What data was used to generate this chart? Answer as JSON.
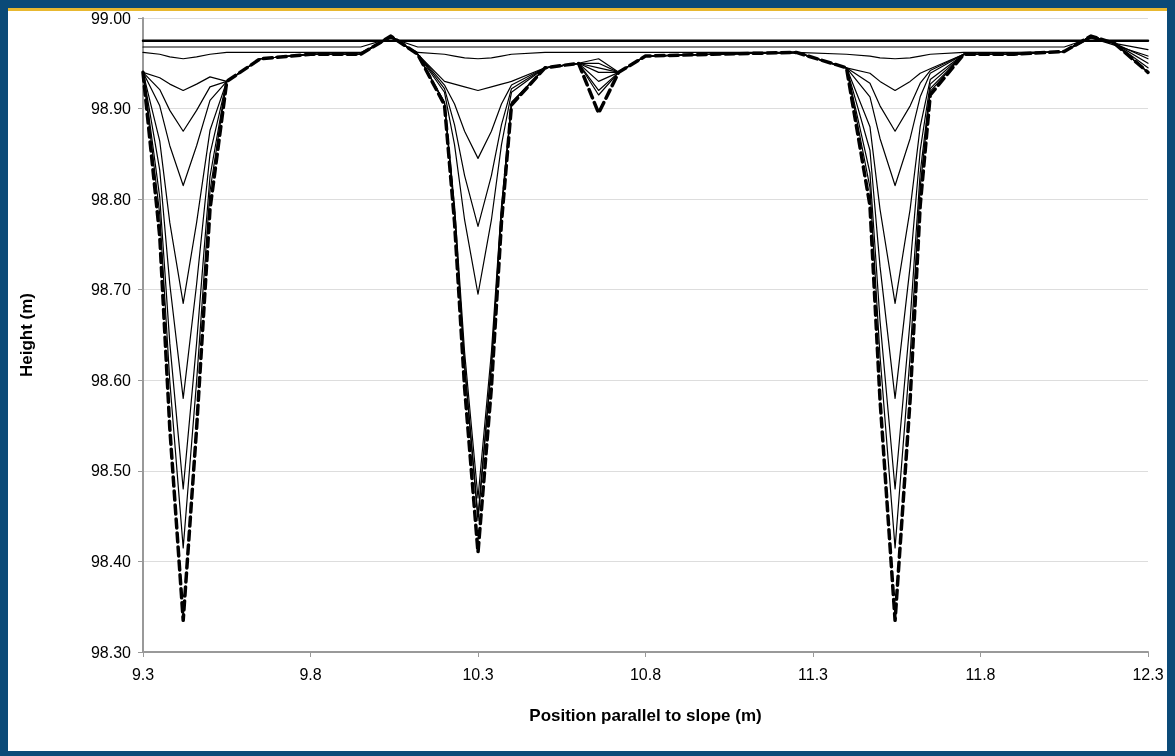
{
  "chart_data": {
    "type": "line",
    "xlabel": "Position parallel to slope (m)",
    "ylabel": "Height (m)",
    "x": [
      9.3,
      9.35,
      9.38,
      9.42,
      9.46,
      9.5,
      9.55,
      9.65,
      9.8,
      9.95,
      10.04,
      10.12,
      10.2,
      10.23,
      10.26,
      10.3,
      10.34,
      10.37,
      10.4,
      10.5,
      10.6,
      10.66,
      10.72,
      10.8,
      11.0,
      11.25,
      11.4,
      11.47,
      11.5,
      11.545,
      11.59,
      11.62,
      11.65,
      11.75,
      11.9,
      12.05,
      12.13,
      12.2,
      12.3
    ],
    "xlim": [
      9.3,
      12.3
    ],
    "xticks": [
      9.3,
      9.8,
      10.3,
      10.8,
      11.3,
      11.8,
      12.3
    ],
    "ylim": [
      98.3,
      99.0
    ],
    "yticks": [
      {
        "value": 98.3,
        "label": "98.30"
      },
      {
        "value": 98.4,
        "label": "98.40"
      },
      {
        "value": 98.5,
        "label": "98.50"
      },
      {
        "value": 98.6,
        "label": "98.60"
      },
      {
        "value": 98.7,
        "label": "98.70"
      },
      {
        "value": 98.8,
        "label": "98.80"
      },
      {
        "value": 98.9,
        "label": "98.90"
      },
      {
        "value": 99.0,
        "label": "99.00"
      }
    ],
    "grid": "y",
    "marker": "none",
    "line_style": "solid",
    "series": [
      {
        "color": "#000000",
        "values": [
          98.975,
          98.975,
          98.975,
          98.975,
          98.975,
          98.975,
          98.975,
          98.975,
          98.975,
          98.975,
          98.975,
          98.975,
          98.975,
          98.975,
          98.975,
          98.975,
          98.975,
          98.975,
          98.975,
          98.975,
          98.975,
          98.975,
          98.975,
          98.975,
          98.975,
          98.975,
          98.975,
          98.975,
          98.975,
          98.975,
          98.975,
          98.975,
          98.975,
          98.975,
          98.975,
          98.975,
          98.975,
          98.975,
          98.975
        ]
      },
      {
        "color": "#000000",
        "values": [
          98.968,
          98.968,
          98.968,
          98.968,
          98.968,
          98.968,
          98.968,
          98.968,
          98.968,
          98.968,
          98.978,
          98.968,
          98.968,
          98.968,
          98.968,
          98.968,
          98.968,
          98.968,
          98.968,
          98.968,
          98.968,
          98.968,
          98.968,
          98.968,
          98.968,
          98.968,
          98.968,
          98.968,
          98.968,
          98.968,
          98.968,
          98.968,
          98.968,
          98.968,
          98.968,
          98.968,
          98.978,
          98.972,
          98.965
        ]
      },
      {
        "color": "#000000",
        "values": [
          98.962,
          98.96,
          98.957,
          98.955,
          98.957,
          98.96,
          98.962,
          98.962,
          98.962,
          98.962,
          98.978,
          98.962,
          98.96,
          98.958,
          98.956,
          98.955,
          98.956,
          98.958,
          98.96,
          98.962,
          98.962,
          98.962,
          98.962,
          98.962,
          98.962,
          98.962,
          98.96,
          98.958,
          98.956,
          98.955,
          98.956,
          98.958,
          98.96,
          98.962,
          98.962,
          98.963,
          98.978,
          98.97,
          98.958
        ]
      },
      {
        "color": "#000000",
        "values": [
          98.94,
          98.934,
          98.927,
          98.92,
          98.927,
          98.935,
          98.93,
          98.955,
          98.96,
          98.96,
          98.98,
          98.96,
          98.93,
          98.927,
          98.924,
          98.92,
          98.924,
          98.927,
          98.93,
          98.945,
          98.95,
          98.955,
          98.94,
          98.958,
          98.96,
          98.962,
          98.945,
          98.939,
          98.93,
          98.92,
          98.93,
          98.939,
          98.944,
          98.96,
          98.96,
          98.963,
          98.98,
          98.972,
          98.955
        ]
      },
      {
        "color": "#000000",
        "values": [
          98.94,
          98.921,
          98.898,
          98.875,
          98.898,
          98.924,
          98.93,
          98.955,
          98.96,
          98.96,
          98.98,
          98.96,
          98.926,
          98.905,
          98.875,
          98.845,
          98.875,
          98.905,
          98.926,
          98.945,
          98.95,
          98.95,
          98.94,
          98.958,
          98.96,
          98.962,
          98.945,
          98.928,
          98.903,
          98.875,
          98.903,
          98.928,
          98.942,
          98.96,
          98.96,
          98.963,
          98.98,
          98.972,
          98.95
        ]
      },
      {
        "color": "#000000",
        "values": [
          98.94,
          98.903,
          98.859,
          98.815,
          98.859,
          98.909,
          98.93,
          98.955,
          98.96,
          98.96,
          98.98,
          98.96,
          98.922,
          98.882,
          98.826,
          98.77,
          98.826,
          98.882,
          98.922,
          98.945,
          98.95,
          98.945,
          98.94,
          98.958,
          98.96,
          98.962,
          98.945,
          98.913,
          98.867,
          98.815,
          98.867,
          98.913,
          98.939,
          98.96,
          98.96,
          98.963,
          98.98,
          98.972,
          98.945
        ]
      },
      {
        "color": "#000000",
        "values": [
          98.94,
          98.864,
          98.774,
          98.685,
          98.774,
          98.876,
          98.93,
          98.955,
          98.96,
          98.96,
          98.98,
          98.96,
          98.918,
          98.86,
          98.777,
          98.695,
          98.777,
          98.86,
          98.918,
          98.945,
          98.95,
          98.94,
          98.94,
          98.958,
          98.96,
          98.962,
          98.945,
          98.88,
          98.789,
          98.685,
          98.789,
          98.88,
          98.932,
          98.96,
          98.96,
          98.963,
          98.98,
          98.972,
          98.94
        ]
      },
      {
        "color": "#000000",
        "values": [
          98.94,
          98.832,
          98.706,
          98.58,
          98.706,
          98.85,
          98.93,
          98.955,
          98.96,
          98.96,
          98.98,
          98.96,
          98.907,
          98.792,
          98.631,
          98.47,
          98.631,
          98.792,
          98.907,
          98.945,
          98.95,
          98.93,
          98.94,
          98.958,
          98.96,
          98.962,
          98.945,
          98.854,
          98.726,
          98.58,
          98.726,
          98.854,
          98.927,
          98.96,
          98.96,
          98.963,
          98.98,
          98.972,
          98.94
        ]
      },
      {
        "color": "#000000",
        "values": [
          98.94,
          98.802,
          98.641,
          98.48,
          98.641,
          98.825,
          98.93,
          98.955,
          98.96,
          98.96,
          98.98,
          98.96,
          98.906,
          98.786,
          98.618,
          98.45,
          98.618,
          98.786,
          98.906,
          98.945,
          98.95,
          98.92,
          98.94,
          98.958,
          98.96,
          98.962,
          98.945,
          98.829,
          98.666,
          98.48,
          98.666,
          98.829,
          98.922,
          98.96,
          98.96,
          98.963,
          98.98,
          98.972,
          98.94
        ]
      },
      {
        "color": "#000000",
        "values": [
          98.94,
          98.783,
          98.599,
          98.415,
          98.599,
          98.809,
          98.93,
          98.955,
          98.96,
          98.96,
          98.98,
          98.96,
          98.906,
          98.785,
          98.615,
          98.445,
          98.615,
          98.785,
          98.906,
          98.945,
          98.95,
          98.915,
          98.94,
          98.958,
          98.96,
          98.962,
          98.945,
          98.813,
          98.627,
          98.415,
          98.627,
          98.813,
          98.919,
          98.96,
          98.96,
          98.963,
          98.98,
          98.972,
          98.94
        ]
      },
      {
        "color": "#000000",
        "line_style": "dashed",
        "values": [
          98.94,
          98.759,
          98.547,
          98.335,
          98.547,
          98.789,
          98.93,
          98.955,
          98.96,
          98.96,
          98.98,
          98.96,
          98.904,
          98.774,
          98.592,
          98.41,
          98.592,
          98.774,
          98.904,
          98.945,
          98.95,
          98.895,
          98.94,
          98.958,
          98.96,
          98.962,
          98.945,
          98.793,
          98.579,
          98.335,
          98.579,
          98.793,
          98.915,
          98.96,
          98.96,
          98.963,
          98.98,
          98.972,
          98.94
        ]
      }
    ]
  }
}
